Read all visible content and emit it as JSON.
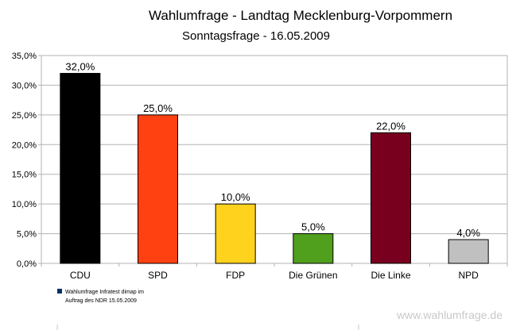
{
  "chart_data": {
    "type": "bar",
    "title": "Wahlumfrage - Landtag Mecklenburg-Vorpommern",
    "subtitle": "Sonntagsfrage - 16.05.2009",
    "categories": [
      "CDU",
      "SPD",
      "FDP",
      "Die Grünen",
      "Die Linke",
      "NPD"
    ],
    "values": [
      32.0,
      25.0,
      10.0,
      5.0,
      22.0,
      4.0
    ],
    "data_labels": [
      "32,0%",
      "25,0%",
      "10,0%",
      "5,0%",
      "22,0%",
      "4,0%"
    ],
    "colors": [
      "#000000",
      "#ff4010",
      "#ffd21e",
      "#50a01e",
      "#78001e",
      "#c0c0c0"
    ],
    "ylim": [
      0,
      35
    ],
    "yticks": [
      "0,0%",
      "5,0%",
      "10,0%",
      "15,0%",
      "20,0%",
      "25,0%",
      "30,0%",
      "35,0%"
    ],
    "grid": true,
    "legend": {
      "placement": "bottom-left",
      "color": "#003366",
      "lines": [
        "Wahlumfrage Infratest dimap im",
        "Auftrag des NDR 15.05.2009"
      ]
    },
    "watermark": "www.wahlumfrage.de"
  }
}
